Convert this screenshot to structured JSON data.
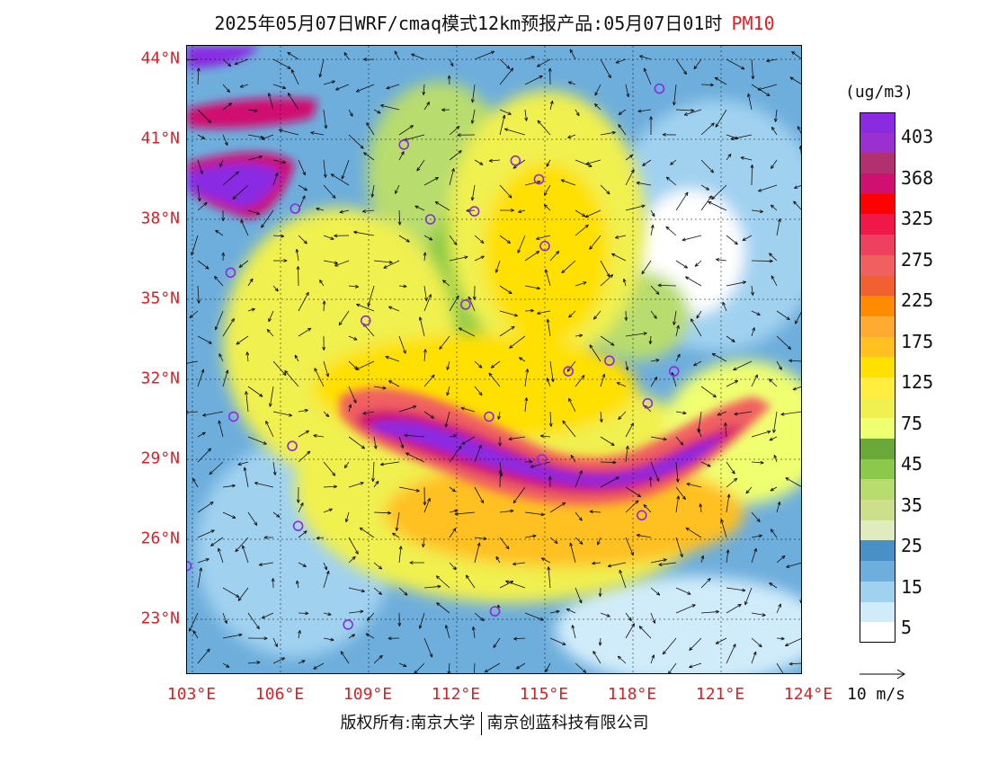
{
  "title": {
    "main": "2025年05月07日WRF/cmaq模式12km预报产品:05月07日01时",
    "variable": "PM10"
  },
  "lat_labels": [
    "44°N",
    "41°N",
    "38°N",
    "35°N",
    "32°N",
    "29°N",
    "26°N",
    "23°N"
  ],
  "lon_labels": [
    "103°E",
    "106°E",
    "109°E",
    "112°E",
    "115°E",
    "118°E",
    "121°E",
    "124°E"
  ],
  "colorbar": {
    "unit": "(ug/m3)",
    "colors": [
      "#8a2be2",
      "#9b30d0",
      "#b03070",
      "#d01070",
      "#ff0000",
      "#f01848",
      "#f04060",
      "#f06060",
      "#f06030",
      "#ff8c00",
      "#ffaa30",
      "#ffc020",
      "#ffe000",
      "#ffee40",
      "#f0f050",
      "#f0ff70",
      "#6aa83a",
      "#8cc84a",
      "#b8dc6e",
      "#cce08c",
      "#e0ecc0",
      "#4a90c8",
      "#6eaedc",
      "#a0d2f0",
      "#d0ecfa",
      "#ffffff"
    ],
    "labels": [
      "403",
      "368",
      "325",
      "275",
      "225",
      "175",
      "125",
      "75",
      "45",
      "35",
      "25",
      "15",
      "5"
    ]
  },
  "wind_reference": "10 m/s",
  "footer": {
    "left": "版权所有:南京大学",
    "right": "南京创蓝科技有限公司"
  },
  "city_markers": [
    {
      "lon": 118.9,
      "lat": 42.9
    },
    {
      "lon": 110.2,
      "lat": 40.8
    },
    {
      "lon": 114.0,
      "lat": 40.2
    },
    {
      "lon": 114.8,
      "lat": 39.5
    },
    {
      "lon": 106.5,
      "lat": 38.4
    },
    {
      "lon": 111.1,
      "lat": 38.0
    },
    {
      "lon": 112.6,
      "lat": 38.3
    },
    {
      "lon": 115.0,
      "lat": 37.0
    },
    {
      "lon": 104.3,
      "lat": 36.0
    },
    {
      "lon": 112.3,
      "lat": 34.8
    },
    {
      "lon": 108.9,
      "lat": 34.2
    },
    {
      "lon": 117.2,
      "lat": 32.7
    },
    {
      "lon": 115.8,
      "lat": 32.3
    },
    {
      "lon": 119.4,
      "lat": 32.3
    },
    {
      "lon": 118.5,
      "lat": 31.1
    },
    {
      "lon": 113.1,
      "lat": 30.6
    },
    {
      "lon": 104.4,
      "lat": 30.6
    },
    {
      "lon": 106.4,
      "lat": 29.5
    },
    {
      "lon": 114.9,
      "lat": 29.0
    },
    {
      "lon": 106.6,
      "lat": 26.5
    },
    {
      "lon": 118.3,
      "lat": 26.9
    },
    {
      "lon": 102.8,
      "lat": 25.0
    },
    {
      "lon": 113.3,
      "lat": 23.3
    },
    {
      "lon": 108.3,
      "lat": 22.8
    }
  ]
}
